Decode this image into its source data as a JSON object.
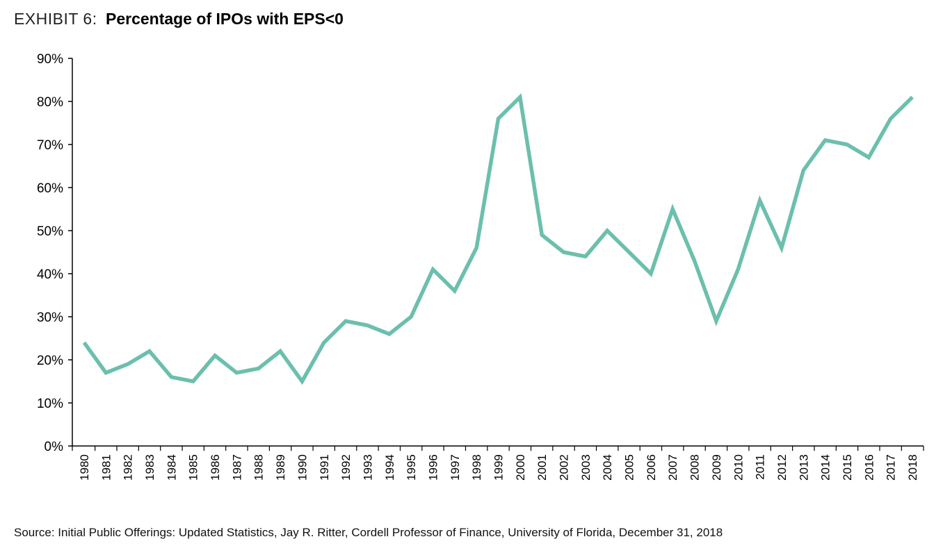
{
  "header": {
    "exhibit_label": "EXHIBIT 6:",
    "title": "Percentage of IPOs with EPS<0"
  },
  "source": "Source: Initial Public Offerings: Updated Statistics, Jay R. Ritter, Cordell Professor of Finance, University of Florida, December 31, 2018",
  "colors": {
    "line": "#6cbfad",
    "axis": "#000000"
  },
  "chart_data": {
    "type": "line",
    "title": "Percentage of IPOs with EPS<0",
    "xlabel": "",
    "ylabel": "",
    "ylim": [
      0,
      90
    ],
    "ytick_step": 10,
    "ytick_format": "percent",
    "grid": false,
    "categories": [
      "1980",
      "1981",
      "1982",
      "1983",
      "1984",
      "1985",
      "1986",
      "1987",
      "1988",
      "1989",
      "1990",
      "1991",
      "1992",
      "1993",
      "1994",
      "1995",
      "1996",
      "1997",
      "1998",
      "1999",
      "2000",
      "2001",
      "2002",
      "2003",
      "2004",
      "2005",
      "2006",
      "2007",
      "2008",
      "2009",
      "2010",
      "2011",
      "2012",
      "2013",
      "2014",
      "2015",
      "2016",
      "2017",
      "2018"
    ],
    "series": [
      {
        "values": [
          24,
          17,
          19,
          22,
          16,
          15,
          21,
          17,
          18,
          22,
          15,
          24,
          29,
          28,
          26,
          30,
          41,
          36,
          46,
          76,
          81,
          49,
          45,
          44,
          50,
          45,
          40,
          55,
          43,
          29,
          41,
          57,
          46,
          64,
          71,
          70,
          67,
          76,
          81
        ]
      }
    ]
  }
}
